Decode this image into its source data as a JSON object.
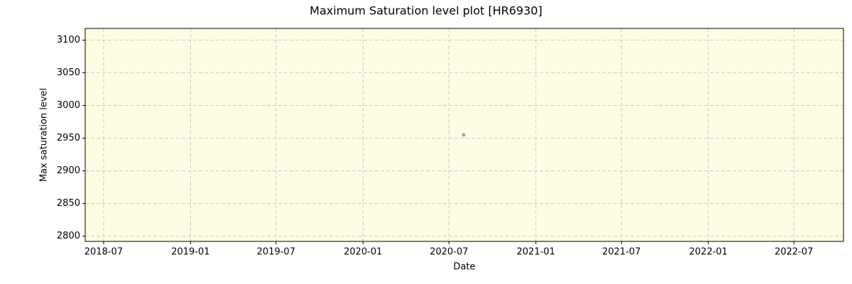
{
  "chart_data": {
    "type": "scatter",
    "title": "Maximum Saturation level plot [HR6930]",
    "x_label": "Date",
    "y_label": "Max saturation level",
    "series": [
      {
        "name": "HR6930",
        "color": "#1f77b4",
        "x": [
          "2020-08"
        ],
        "values": [
          2955
        ]
      }
    ],
    "xlim": [
      "2018-05-23",
      "2022-10-14"
    ],
    "xticks": [
      "2018-07",
      "2019-01",
      "2019-07",
      "2020-01",
      "2020-07",
      "2021-01",
      "2021-07",
      "2022-01",
      "2022-07"
    ],
    "ylim": [
      2792,
      3118
    ],
    "yticks": [
      2800,
      2850,
      2900,
      2950,
      3000,
      3050,
      3100
    ],
    "grid": true,
    "background": "#fdfde3"
  }
}
